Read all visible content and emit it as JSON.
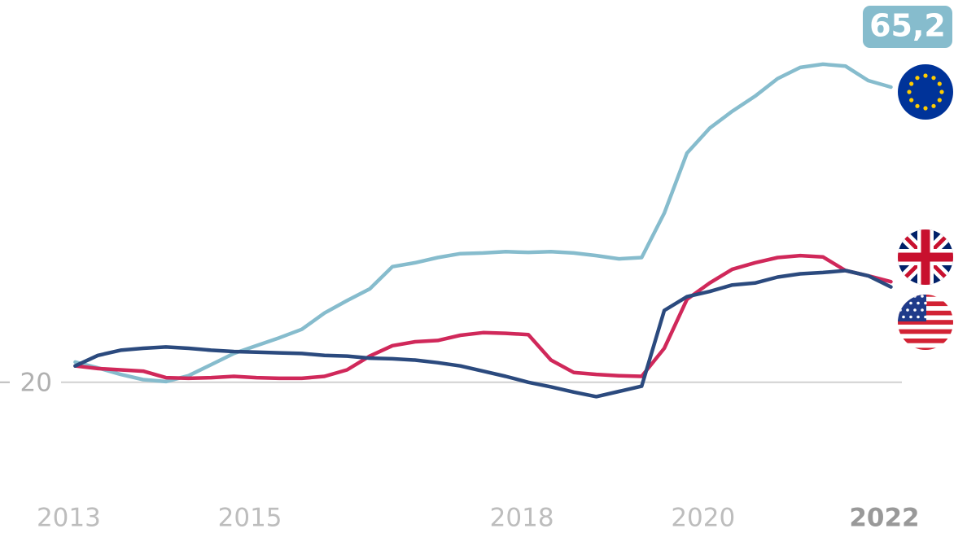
{
  "chart_data": {
    "type": "line",
    "x": [
      2013,
      2013.25,
      2013.5,
      2013.75,
      2014,
      2014.25,
      2014.5,
      2014.75,
      2015,
      2015.25,
      2015.5,
      2015.75,
      2016,
      2016.25,
      2016.5,
      2016.75,
      2017,
      2017.25,
      2017.5,
      2017.75,
      2018,
      2018.25,
      2018.5,
      2018.75,
      2019,
      2019.25,
      2019.5,
      2019.75,
      2020,
      2020.25,
      2020.5,
      2020.75,
      2021,
      2021.25,
      2021.5,
      2021.75,
      2022
    ],
    "series": [
      {
        "color": "#86bccd",
        "end_label": "65,2",
        "values": [
          23.1,
          22.2,
          21.2,
          20.4,
          20.1,
          21.0,
          22.7,
          24.4,
          25.6,
          26.8,
          28.1,
          30.6,
          32.5,
          34.3,
          37.7,
          38.3,
          39.1,
          39.7,
          39.8,
          40.0,
          39.9,
          40.0,
          39.8,
          39.4,
          38.9,
          39.1,
          45.9,
          55.1,
          58.9,
          61.5,
          63.8,
          66.5,
          68.2,
          68.7,
          68.4,
          66.2,
          65.2
        ]
      },
      {
        "color": "#d0285a",
        "values": [
          22.5,
          22.1,
          21.9,
          21.7,
          20.7,
          20.6,
          20.7,
          20.9,
          20.7,
          20.6,
          20.6,
          20.9,
          21.9,
          24.0,
          25.6,
          26.2,
          26.4,
          27.2,
          27.6,
          27.5,
          27.3,
          23.4,
          21.5,
          21.2,
          21.0,
          20.9,
          25.2,
          32.7,
          35.2,
          37.3,
          38.3,
          39.1,
          39.4,
          39.2,
          37.1,
          36.3,
          35.4
        ]
      },
      {
        "color": "#2b4a7e",
        "values": [
          22.5,
          24.1,
          24.9,
          25.2,
          25.4,
          25.2,
          24.9,
          24.7,
          24.6,
          24.5,
          24.4,
          24.1,
          24.0,
          23.7,
          23.6,
          23.4,
          23.0,
          22.5,
          21.7,
          20.9,
          20.0,
          19.3,
          18.5,
          17.8,
          18.6,
          19.4,
          31.0,
          33.1,
          33.9,
          34.9,
          35.2,
          36.1,
          36.6,
          36.8,
          37.1,
          36.3,
          34.6
        ]
      }
    ],
    "xlim": [
      2012.17,
      2022.84
    ],
    "xticks": [
      2013,
      2015,
      2018,
      2020,
      2022
    ],
    "ylim": [
      10,
      70
    ],
    "yticks": [
      20
    ],
    "grid": true
  }
}
